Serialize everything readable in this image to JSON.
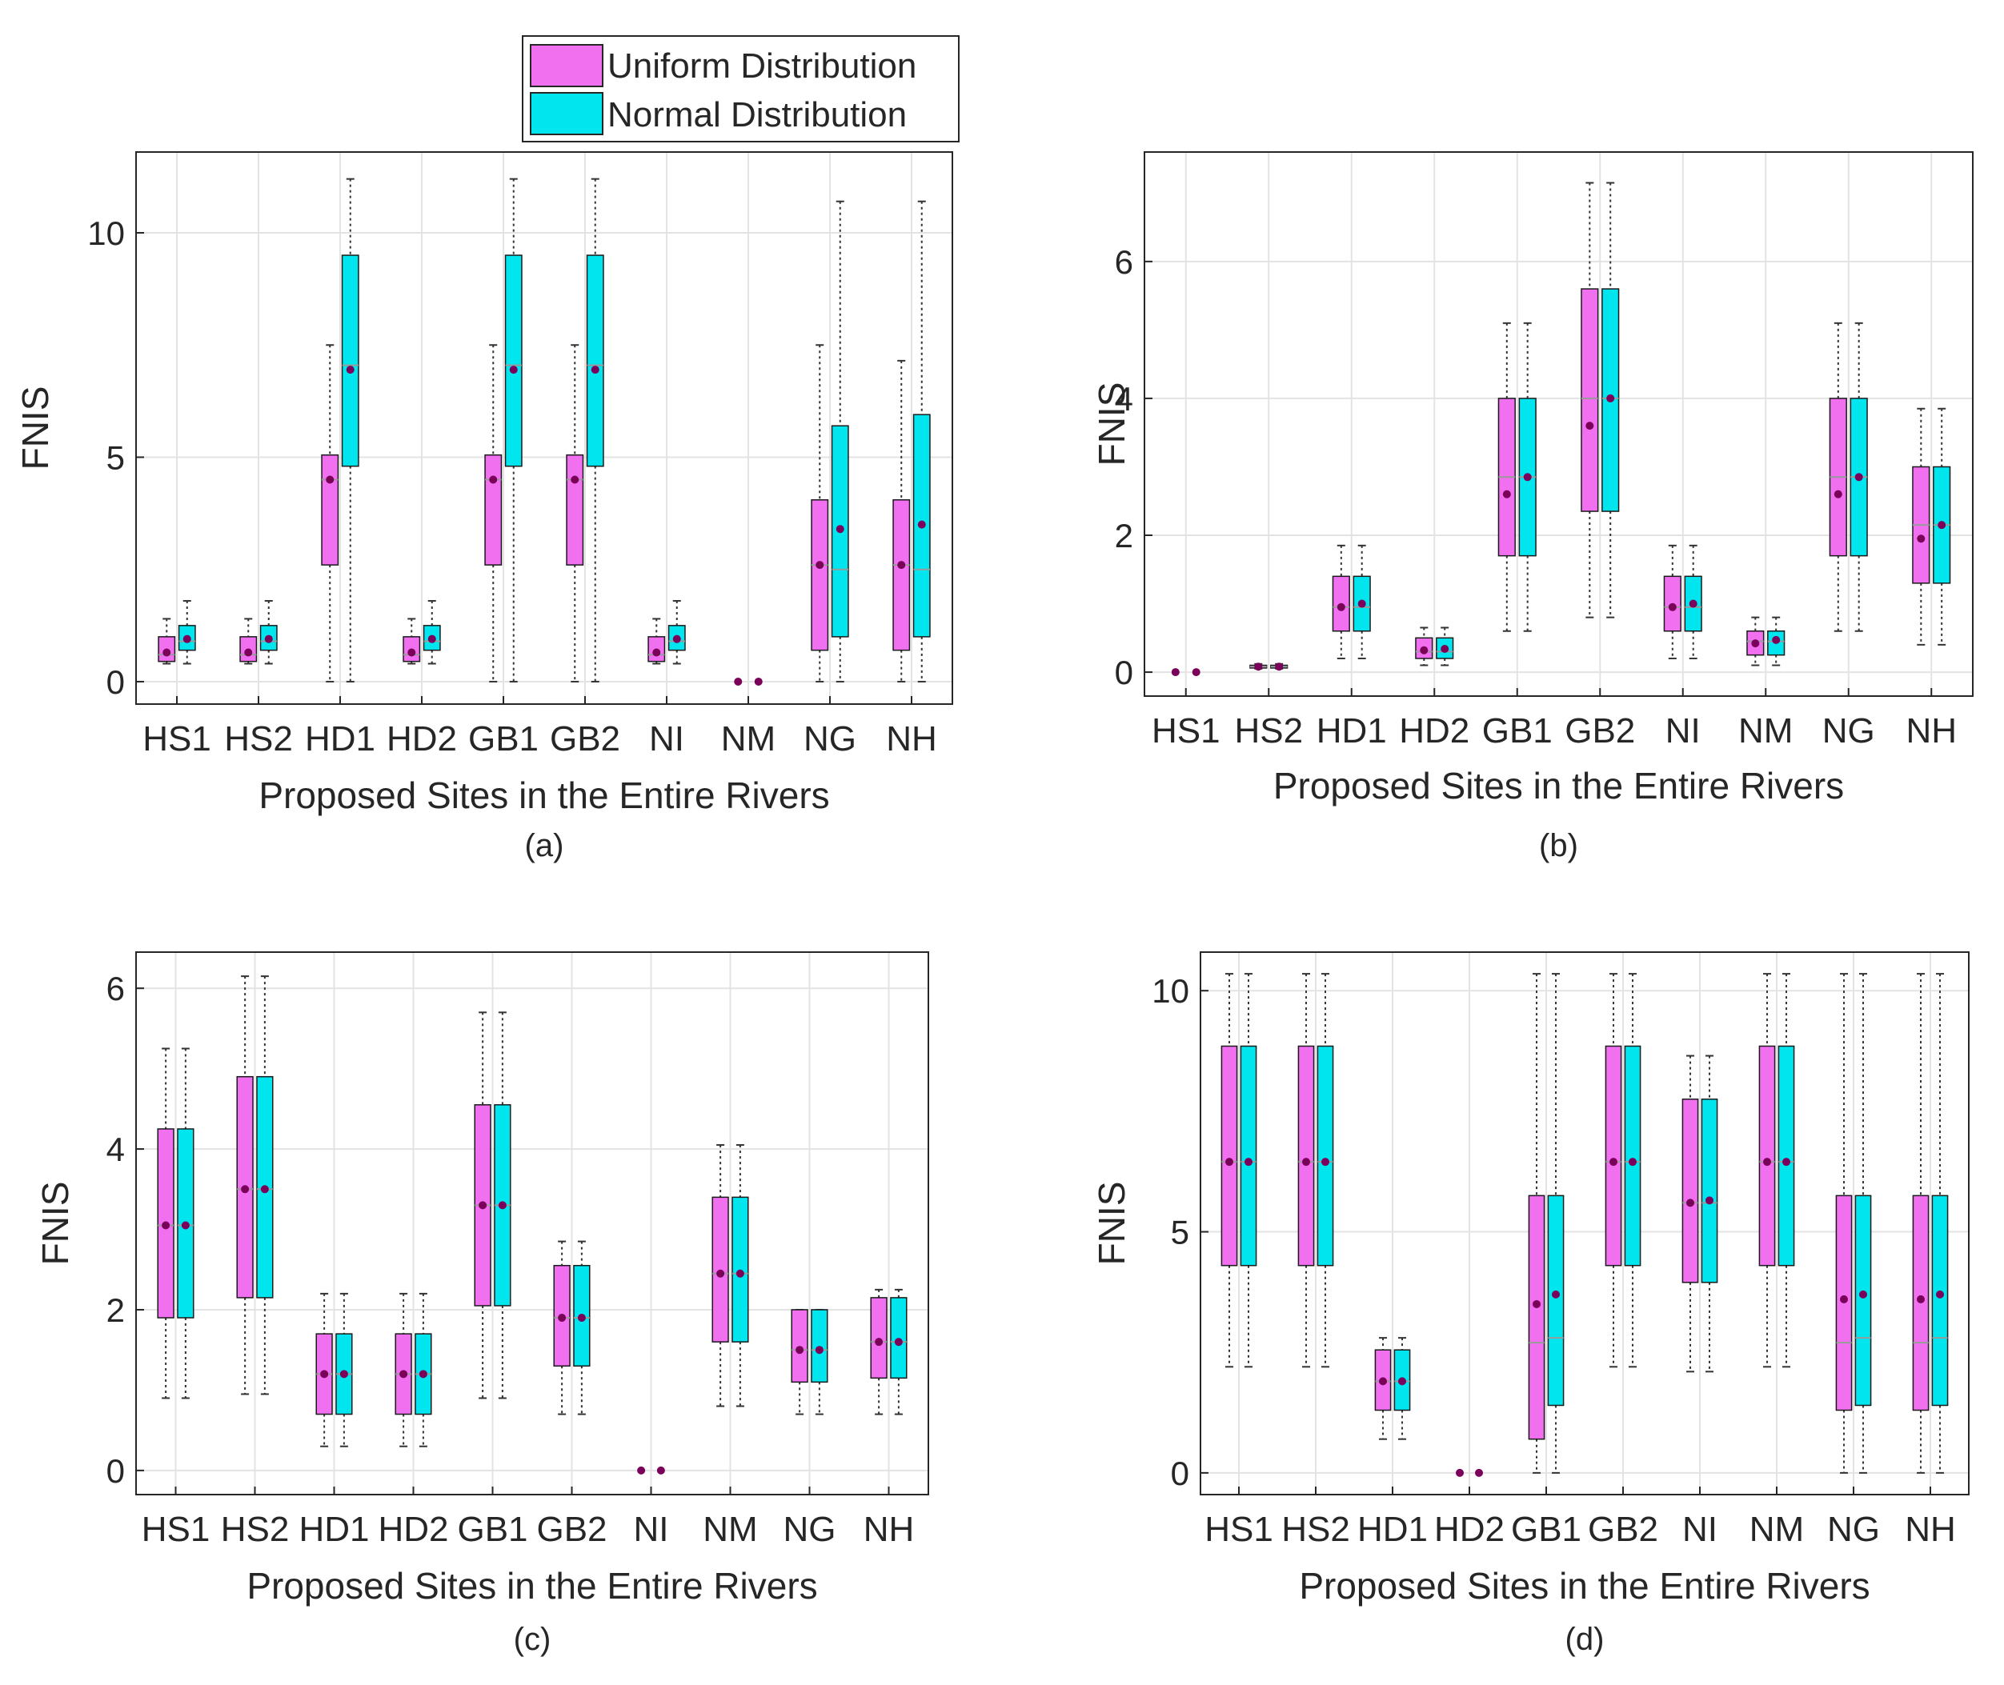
{
  "legend": {
    "entries": [
      {
        "label": "Uniform Distribution",
        "color": "#f070f0"
      },
      {
        "label": "Normal Distribution",
        "color": "#00e5ee"
      }
    ]
  },
  "colors": {
    "uniform": "#f070f0",
    "normal": "#00e5ee",
    "mean_marker": "#7a005a",
    "grid": "#e3e3e3",
    "axis": "#262626"
  },
  "chart_data": [
    {
      "type": "box",
      "panel": "(a)",
      "xlabel": "Proposed Sites in the Entire Rivers",
      "ylabel": "FNIS",
      "categories": [
        "HS1",
        "HS2",
        "HD1",
        "HD2",
        "GB1",
        "GB2",
        "NI",
        "NM",
        "NG",
        "NH"
      ],
      "ylim": [
        -0.5,
        11.8
      ],
      "yticks": [
        0,
        5,
        10
      ],
      "grid": true,
      "series": [
        {
          "name": "Uniform Distribution",
          "boxes": [
            {
              "min": 0.4,
              "q1": 0.45,
              "median": 0.6,
              "q3": 1.0,
              "max": 1.4,
              "mean": 0.65
            },
            {
              "min": 0.4,
              "q1": 0.45,
              "median": 0.6,
              "q3": 1.0,
              "max": 1.4,
              "mean": 0.65
            },
            {
              "min": 0,
              "q1": 2.6,
              "median": 4.5,
              "q3": 5.05,
              "max": 7.5,
              "mean": 4.5
            },
            {
              "min": 0.4,
              "q1": 0.45,
              "median": 0.6,
              "q3": 1.0,
              "max": 1.4,
              "mean": 0.65
            },
            {
              "min": 0,
              "q1": 2.6,
              "median": 4.5,
              "q3": 5.05,
              "max": 7.5,
              "mean": 4.5
            },
            {
              "min": 0,
              "q1": 2.6,
              "median": 4.5,
              "q3": 5.05,
              "max": 7.5,
              "mean": 4.5
            },
            {
              "min": 0.4,
              "q1": 0.45,
              "median": 0.6,
              "q3": 1.0,
              "max": 1.4,
              "mean": 0.65
            },
            {
              "min": 0,
              "q1": 0,
              "median": 0,
              "q3": 0,
              "max": 0,
              "mean": 0
            },
            {
              "min": 0,
              "q1": 0.7,
              "median": 2.6,
              "q3": 4.05,
              "max": 7.5,
              "mean": 2.6
            },
            {
              "min": 0,
              "q1": 0.7,
              "median": 2.6,
              "q3": 4.05,
              "max": 7.15,
              "mean": 2.6
            }
          ]
        },
        {
          "name": "Normal Distribution",
          "boxes": [
            {
              "min": 0.4,
              "q1": 0.7,
              "median": 0.9,
              "q3": 1.25,
              "max": 1.8,
              "mean": 0.95
            },
            {
              "min": 0.4,
              "q1": 0.7,
              "median": 0.9,
              "q3": 1.25,
              "max": 1.8,
              "mean": 0.95
            },
            {
              "min": 0,
              "q1": 4.8,
              "median": 7.05,
              "q3": 9.5,
              "max": 11.2,
              "mean": 6.95
            },
            {
              "min": 0.4,
              "q1": 0.7,
              "median": 0.9,
              "q3": 1.25,
              "max": 1.8,
              "mean": 0.95
            },
            {
              "min": 0,
              "q1": 4.8,
              "median": 7.05,
              "q3": 9.5,
              "max": 11.2,
              "mean": 6.95
            },
            {
              "min": 0,
              "q1": 4.8,
              "median": 7.05,
              "q3": 9.5,
              "max": 11.2,
              "mean": 6.95
            },
            {
              "min": 0.4,
              "q1": 0.7,
              "median": 0.9,
              "q3": 1.25,
              "max": 1.8,
              "mean": 0.95
            },
            {
              "min": 0,
              "q1": 0,
              "median": 0,
              "q3": 0,
              "max": 0,
              "mean": 0
            },
            {
              "min": 0,
              "q1": 1.0,
              "median": 2.5,
              "q3": 5.7,
              "max": 10.7,
              "mean": 3.4
            },
            {
              "min": 0,
              "q1": 1.0,
              "median": 2.5,
              "q3": 5.95,
              "max": 10.7,
              "mean": 3.5
            }
          ]
        }
      ]
    },
    {
      "type": "box",
      "panel": "(b)",
      "xlabel": "Proposed Sites in the Entire Rivers",
      "ylabel": "FNIS",
      "categories": [
        "HS1",
        "HS2",
        "HD1",
        "HD2",
        "GB1",
        "GB2",
        "NI",
        "NM",
        "NG",
        "NH"
      ],
      "ylim": [
        -0.35,
        7.6
      ],
      "yticks": [
        0,
        2,
        4,
        6
      ],
      "grid": true,
      "series": [
        {
          "name": "Uniform Distribution",
          "boxes": [
            {
              "min": 0,
              "q1": 0,
              "median": 0,
              "q3": 0,
              "max": 0,
              "mean": 0
            },
            {
              "min": 0.05,
              "q1": 0.06,
              "median": 0.08,
              "q3": 0.1,
              "max": 0.12,
              "mean": 0.08
            },
            {
              "min": 0.2,
              "q1": 0.6,
              "median": 0.95,
              "q3": 1.4,
              "max": 1.85,
              "mean": 0.95
            },
            {
              "min": 0.1,
              "q1": 0.2,
              "median": 0.3,
              "q3": 0.5,
              "max": 0.65,
              "mean": 0.32
            },
            {
              "min": 0.6,
              "q1": 1.7,
              "median": 2.85,
              "q3": 4.0,
              "max": 5.1,
              "mean": 2.6
            },
            {
              "min": 0.8,
              "q1": 2.35,
              "median": 4.0,
              "q3": 5.6,
              "max": 7.15,
              "mean": 3.6
            },
            {
              "min": 0.2,
              "q1": 0.6,
              "median": 0.95,
              "q3": 1.4,
              "max": 1.85,
              "mean": 0.95
            },
            {
              "min": 0.1,
              "q1": 0.25,
              "median": 0.45,
              "q3": 0.6,
              "max": 0.8,
              "mean": 0.42
            },
            {
              "min": 0.6,
              "q1": 1.7,
              "median": 2.85,
              "q3": 4.0,
              "max": 5.1,
              "mean": 2.6
            },
            {
              "min": 0.4,
              "q1": 1.3,
              "median": 2.15,
              "q3": 3.0,
              "max": 3.85,
              "mean": 1.95
            }
          ]
        },
        {
          "name": "Normal Distribution",
          "boxes": [
            {
              "min": 0,
              "q1": 0,
              "median": 0,
              "q3": 0,
              "max": 0,
              "mean": 0
            },
            {
              "min": 0.05,
              "q1": 0.06,
              "median": 0.08,
              "q3": 0.1,
              "max": 0.12,
              "mean": 0.08
            },
            {
              "min": 0.2,
              "q1": 0.6,
              "median": 0.95,
              "q3": 1.4,
              "max": 1.85,
              "mean": 1.0
            },
            {
              "min": 0.1,
              "q1": 0.2,
              "median": 0.3,
              "q3": 0.5,
              "max": 0.65,
              "mean": 0.34
            },
            {
              "min": 0.6,
              "q1": 1.7,
              "median": 2.85,
              "q3": 4.0,
              "max": 5.1,
              "mean": 2.85
            },
            {
              "min": 0.8,
              "q1": 2.35,
              "median": 4.0,
              "q3": 5.6,
              "max": 7.15,
              "mean": 4.0
            },
            {
              "min": 0.2,
              "q1": 0.6,
              "median": 0.95,
              "q3": 1.4,
              "max": 1.85,
              "mean": 1.0
            },
            {
              "min": 0.1,
              "q1": 0.25,
              "median": 0.45,
              "q3": 0.6,
              "max": 0.8,
              "mean": 0.47
            },
            {
              "min": 0.6,
              "q1": 1.7,
              "median": 2.85,
              "q3": 4.0,
              "max": 5.1,
              "mean": 2.85
            },
            {
              "min": 0.4,
              "q1": 1.3,
              "median": 2.15,
              "q3": 3.0,
              "max": 3.85,
              "mean": 2.15
            }
          ]
        }
      ]
    },
    {
      "type": "box",
      "panel": "(c)",
      "xlabel": "Proposed Sites in the Entire Rivers",
      "ylabel": "FNIS",
      "categories": [
        "HS1",
        "HS2",
        "HD1",
        "HD2",
        "GB1",
        "GB2",
        "NI",
        "NM",
        "NG",
        "NH"
      ],
      "ylim": [
        -0.3,
        6.45
      ],
      "yticks": [
        0,
        2,
        4,
        6
      ],
      "grid": true,
      "series": [
        {
          "name": "Uniform Distribution",
          "boxes": [
            {
              "min": 0.9,
              "q1": 1.9,
              "median": 3.05,
              "q3": 4.25,
              "max": 5.25,
              "mean": 3.05
            },
            {
              "min": 0.95,
              "q1": 2.15,
              "median": 3.5,
              "q3": 4.9,
              "max": 6.15,
              "mean": 3.5
            },
            {
              "min": 0.3,
              "q1": 0.7,
              "median": 1.2,
              "q3": 1.7,
              "max": 2.2,
              "mean": 1.2
            },
            {
              "min": 0.3,
              "q1": 0.7,
              "median": 1.2,
              "q3": 1.7,
              "max": 2.2,
              "mean": 1.2
            },
            {
              "min": 0.9,
              "q1": 2.05,
              "median": 3.3,
              "q3": 4.55,
              "max": 5.7,
              "mean": 3.3
            },
            {
              "min": 0.7,
              "q1": 1.3,
              "median": 1.9,
              "q3": 2.55,
              "max": 2.85,
              "mean": 1.9
            },
            {
              "min": 0,
              "q1": 0,
              "median": 0,
              "q3": 0,
              "max": 0,
              "mean": 0
            },
            {
              "min": 0.8,
              "q1": 1.6,
              "median": 2.45,
              "q3": 3.4,
              "max": 4.05,
              "mean": 2.45
            },
            {
              "min": 0.7,
              "q1": 1.1,
              "median": 1.5,
              "q3": 2.0,
              "max": 2.0,
              "mean": 1.5
            },
            {
              "min": 0.7,
              "q1": 1.15,
              "median": 1.6,
              "q3": 2.15,
              "max": 2.25,
              "mean": 1.6
            }
          ]
        },
        {
          "name": "Normal Distribution",
          "boxes": [
            {
              "min": 0.9,
              "q1": 1.9,
              "median": 3.05,
              "q3": 4.25,
              "max": 5.25,
              "mean": 3.05
            },
            {
              "min": 0.95,
              "q1": 2.15,
              "median": 3.5,
              "q3": 4.9,
              "max": 6.15,
              "mean": 3.5
            },
            {
              "min": 0.3,
              "q1": 0.7,
              "median": 1.2,
              "q3": 1.7,
              "max": 2.2,
              "mean": 1.2
            },
            {
              "min": 0.3,
              "q1": 0.7,
              "median": 1.2,
              "q3": 1.7,
              "max": 2.2,
              "mean": 1.2
            },
            {
              "min": 0.9,
              "q1": 2.05,
              "median": 3.3,
              "q3": 4.55,
              "max": 5.7,
              "mean": 3.3
            },
            {
              "min": 0.7,
              "q1": 1.3,
              "median": 1.9,
              "q3": 2.55,
              "max": 2.85,
              "mean": 1.9
            },
            {
              "min": 0,
              "q1": 0,
              "median": 0,
              "q3": 0,
              "max": 0,
              "mean": 0
            },
            {
              "min": 0.8,
              "q1": 1.6,
              "median": 2.45,
              "q3": 3.4,
              "max": 4.05,
              "mean": 2.45
            },
            {
              "min": 0.7,
              "q1": 1.1,
              "median": 1.5,
              "q3": 2.0,
              "max": 2.0,
              "mean": 1.5
            },
            {
              "min": 0.7,
              "q1": 1.15,
              "median": 1.6,
              "q3": 2.15,
              "max": 2.25,
              "mean": 1.6
            }
          ]
        }
      ]
    },
    {
      "type": "box",
      "panel": "(d)",
      "xlabel": "Proposed Sites in the Entire Rivers",
      "ylabel": "FNIS",
      "categories": [
        "HS1",
        "HS2",
        "HD1",
        "HD2",
        "GB1",
        "GB2",
        "NI",
        "NM",
        "NG",
        "NH"
      ],
      "ylim": [
        -0.45,
        10.8
      ],
      "yticks": [
        0,
        5,
        10
      ],
      "grid": true,
      "series": [
        {
          "name": "Uniform Distribution",
          "boxes": [
            {
              "min": 2.2,
              "q1": 4.3,
              "median": 6.45,
              "q3": 8.85,
              "max": 10.35,
              "mean": 6.45
            },
            {
              "min": 2.2,
              "q1": 4.3,
              "median": 6.45,
              "q3": 8.85,
              "max": 10.35,
              "mean": 6.45
            },
            {
              "min": 0.7,
              "q1": 1.3,
              "median": 1.9,
              "q3": 2.55,
              "max": 2.8,
              "mean": 1.9
            },
            {
              "min": 0,
              "q1": 0,
              "median": 0,
              "q3": 0,
              "max": 0,
              "mean": 0
            },
            {
              "min": 0,
              "q1": 0.7,
              "median": 2.7,
              "q3": 5.75,
              "max": 10.35,
              "mean": 3.5
            },
            {
              "min": 2.2,
              "q1": 4.3,
              "median": 6.45,
              "q3": 8.85,
              "max": 10.35,
              "mean": 6.45
            },
            {
              "min": 2.1,
              "q1": 3.95,
              "median": 5.6,
              "q3": 7.75,
              "max": 8.65,
              "mean": 5.6
            },
            {
              "min": 2.2,
              "q1": 4.3,
              "median": 6.45,
              "q3": 8.85,
              "max": 10.35,
              "mean": 6.45
            },
            {
              "min": 0,
              "q1": 1.3,
              "median": 2.7,
              "q3": 5.75,
              "max": 10.35,
              "mean": 3.6
            },
            {
              "min": 0,
              "q1": 1.3,
              "median": 2.7,
              "q3": 5.75,
              "max": 10.35,
              "mean": 3.6
            }
          ]
        },
        {
          "name": "Normal Distribution",
          "boxes": [
            {
              "min": 2.2,
              "q1": 4.3,
              "median": 6.45,
              "q3": 8.85,
              "max": 10.35,
              "mean": 6.45
            },
            {
              "min": 2.2,
              "q1": 4.3,
              "median": 6.45,
              "q3": 8.85,
              "max": 10.35,
              "mean": 6.45
            },
            {
              "min": 0.7,
              "q1": 1.3,
              "median": 1.9,
              "q3": 2.55,
              "max": 2.8,
              "mean": 1.9
            },
            {
              "min": 0,
              "q1": 0,
              "median": 0,
              "q3": 0,
              "max": 0,
              "mean": 0
            },
            {
              "min": 0,
              "q1": 1.4,
              "median": 2.8,
              "q3": 5.75,
              "max": 10.35,
              "mean": 3.7
            },
            {
              "min": 2.2,
              "q1": 4.3,
              "median": 6.45,
              "q3": 8.85,
              "max": 10.35,
              "mean": 6.45
            },
            {
              "min": 2.1,
              "q1": 3.95,
              "median": 5.6,
              "q3": 7.75,
              "max": 8.65,
              "mean": 5.65
            },
            {
              "min": 2.2,
              "q1": 4.3,
              "median": 6.45,
              "q3": 8.85,
              "max": 10.35,
              "mean": 6.45
            },
            {
              "min": 0,
              "q1": 1.4,
              "median": 2.8,
              "q3": 5.75,
              "max": 10.35,
              "mean": 3.7
            },
            {
              "min": 0,
              "q1": 1.4,
              "median": 2.8,
              "q3": 5.75,
              "max": 10.35,
              "mean": 3.7
            }
          ]
        }
      ]
    }
  ]
}
